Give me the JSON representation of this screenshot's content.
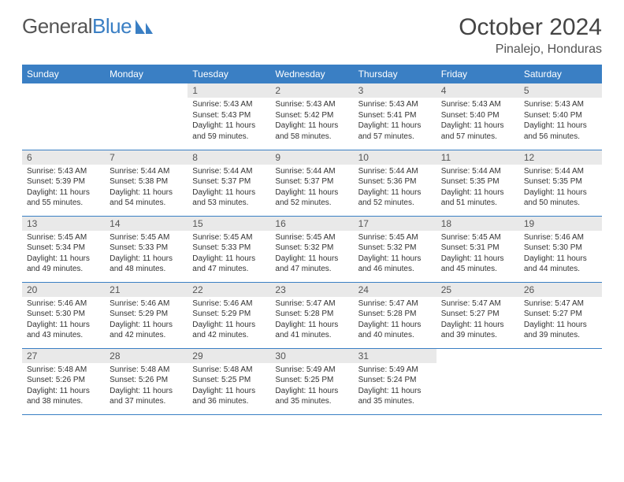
{
  "logo": {
    "text1": "General",
    "text2": "Blue"
  },
  "header": {
    "title": "October 2024",
    "location": "Pinalejo, Honduras"
  },
  "colors": {
    "brand_blue": "#3a7fc4",
    "daynum_bg": "#e9e9e9",
    "text": "#333333",
    "header_text": "#444444",
    "white": "#ffffff"
  },
  "daynames": [
    "Sunday",
    "Monday",
    "Tuesday",
    "Wednesday",
    "Thursday",
    "Friday",
    "Saturday"
  ],
  "weeks": [
    [
      {
        "num": "",
        "sunrise": "",
        "sunset": "",
        "daylight": ""
      },
      {
        "num": "",
        "sunrise": "",
        "sunset": "",
        "daylight": ""
      },
      {
        "num": "1",
        "sunrise": "Sunrise: 5:43 AM",
        "sunset": "Sunset: 5:43 PM",
        "daylight": "Daylight: 11 hours and 59 minutes."
      },
      {
        "num": "2",
        "sunrise": "Sunrise: 5:43 AM",
        "sunset": "Sunset: 5:42 PM",
        "daylight": "Daylight: 11 hours and 58 minutes."
      },
      {
        "num": "3",
        "sunrise": "Sunrise: 5:43 AM",
        "sunset": "Sunset: 5:41 PM",
        "daylight": "Daylight: 11 hours and 57 minutes."
      },
      {
        "num": "4",
        "sunrise": "Sunrise: 5:43 AM",
        "sunset": "Sunset: 5:40 PM",
        "daylight": "Daylight: 11 hours and 57 minutes."
      },
      {
        "num": "5",
        "sunrise": "Sunrise: 5:43 AM",
        "sunset": "Sunset: 5:40 PM",
        "daylight": "Daylight: 11 hours and 56 minutes."
      }
    ],
    [
      {
        "num": "6",
        "sunrise": "Sunrise: 5:43 AM",
        "sunset": "Sunset: 5:39 PM",
        "daylight": "Daylight: 11 hours and 55 minutes."
      },
      {
        "num": "7",
        "sunrise": "Sunrise: 5:44 AM",
        "sunset": "Sunset: 5:38 PM",
        "daylight": "Daylight: 11 hours and 54 minutes."
      },
      {
        "num": "8",
        "sunrise": "Sunrise: 5:44 AM",
        "sunset": "Sunset: 5:37 PM",
        "daylight": "Daylight: 11 hours and 53 minutes."
      },
      {
        "num": "9",
        "sunrise": "Sunrise: 5:44 AM",
        "sunset": "Sunset: 5:37 PM",
        "daylight": "Daylight: 11 hours and 52 minutes."
      },
      {
        "num": "10",
        "sunrise": "Sunrise: 5:44 AM",
        "sunset": "Sunset: 5:36 PM",
        "daylight": "Daylight: 11 hours and 52 minutes."
      },
      {
        "num": "11",
        "sunrise": "Sunrise: 5:44 AM",
        "sunset": "Sunset: 5:35 PM",
        "daylight": "Daylight: 11 hours and 51 minutes."
      },
      {
        "num": "12",
        "sunrise": "Sunrise: 5:44 AM",
        "sunset": "Sunset: 5:35 PM",
        "daylight": "Daylight: 11 hours and 50 minutes."
      }
    ],
    [
      {
        "num": "13",
        "sunrise": "Sunrise: 5:45 AM",
        "sunset": "Sunset: 5:34 PM",
        "daylight": "Daylight: 11 hours and 49 minutes."
      },
      {
        "num": "14",
        "sunrise": "Sunrise: 5:45 AM",
        "sunset": "Sunset: 5:33 PM",
        "daylight": "Daylight: 11 hours and 48 minutes."
      },
      {
        "num": "15",
        "sunrise": "Sunrise: 5:45 AM",
        "sunset": "Sunset: 5:33 PM",
        "daylight": "Daylight: 11 hours and 47 minutes."
      },
      {
        "num": "16",
        "sunrise": "Sunrise: 5:45 AM",
        "sunset": "Sunset: 5:32 PM",
        "daylight": "Daylight: 11 hours and 47 minutes."
      },
      {
        "num": "17",
        "sunrise": "Sunrise: 5:45 AM",
        "sunset": "Sunset: 5:32 PM",
        "daylight": "Daylight: 11 hours and 46 minutes."
      },
      {
        "num": "18",
        "sunrise": "Sunrise: 5:45 AM",
        "sunset": "Sunset: 5:31 PM",
        "daylight": "Daylight: 11 hours and 45 minutes."
      },
      {
        "num": "19",
        "sunrise": "Sunrise: 5:46 AM",
        "sunset": "Sunset: 5:30 PM",
        "daylight": "Daylight: 11 hours and 44 minutes."
      }
    ],
    [
      {
        "num": "20",
        "sunrise": "Sunrise: 5:46 AM",
        "sunset": "Sunset: 5:30 PM",
        "daylight": "Daylight: 11 hours and 43 minutes."
      },
      {
        "num": "21",
        "sunrise": "Sunrise: 5:46 AM",
        "sunset": "Sunset: 5:29 PM",
        "daylight": "Daylight: 11 hours and 42 minutes."
      },
      {
        "num": "22",
        "sunrise": "Sunrise: 5:46 AM",
        "sunset": "Sunset: 5:29 PM",
        "daylight": "Daylight: 11 hours and 42 minutes."
      },
      {
        "num": "23",
        "sunrise": "Sunrise: 5:47 AM",
        "sunset": "Sunset: 5:28 PM",
        "daylight": "Daylight: 11 hours and 41 minutes."
      },
      {
        "num": "24",
        "sunrise": "Sunrise: 5:47 AM",
        "sunset": "Sunset: 5:28 PM",
        "daylight": "Daylight: 11 hours and 40 minutes."
      },
      {
        "num": "25",
        "sunrise": "Sunrise: 5:47 AM",
        "sunset": "Sunset: 5:27 PM",
        "daylight": "Daylight: 11 hours and 39 minutes."
      },
      {
        "num": "26",
        "sunrise": "Sunrise: 5:47 AM",
        "sunset": "Sunset: 5:27 PM",
        "daylight": "Daylight: 11 hours and 39 minutes."
      }
    ],
    [
      {
        "num": "27",
        "sunrise": "Sunrise: 5:48 AM",
        "sunset": "Sunset: 5:26 PM",
        "daylight": "Daylight: 11 hours and 38 minutes."
      },
      {
        "num": "28",
        "sunrise": "Sunrise: 5:48 AM",
        "sunset": "Sunset: 5:26 PM",
        "daylight": "Daylight: 11 hours and 37 minutes."
      },
      {
        "num": "29",
        "sunrise": "Sunrise: 5:48 AM",
        "sunset": "Sunset: 5:25 PM",
        "daylight": "Daylight: 11 hours and 36 minutes."
      },
      {
        "num": "30",
        "sunrise": "Sunrise: 5:49 AM",
        "sunset": "Sunset: 5:25 PM",
        "daylight": "Daylight: 11 hours and 35 minutes."
      },
      {
        "num": "31",
        "sunrise": "Sunrise: 5:49 AM",
        "sunset": "Sunset: 5:24 PM",
        "daylight": "Daylight: 11 hours and 35 minutes."
      },
      {
        "num": "",
        "sunrise": "",
        "sunset": "",
        "daylight": ""
      },
      {
        "num": "",
        "sunrise": "",
        "sunset": "",
        "daylight": ""
      }
    ]
  ]
}
